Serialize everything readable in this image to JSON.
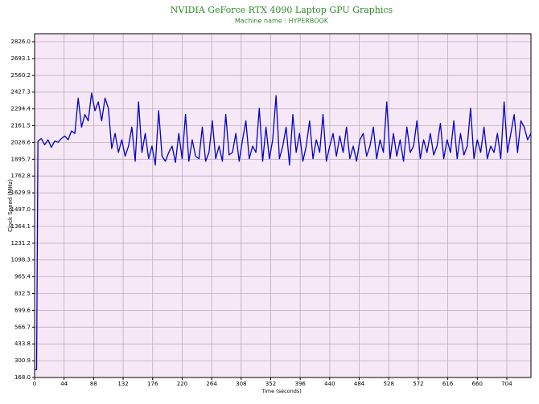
{
  "chart_data": {
    "type": "line",
    "title": "NVIDIA GeForce RTX 4090 Laptop GPU Graphics",
    "subtitle": "Machine name : HYPERBOOK",
    "x_label": "Time (seconds)",
    "y_label": "Clock Speed (MHz)",
    "xlim": [
      0,
      740
    ],
    "ylim": [
      168,
      2889.6
    ],
    "xticks": [
      0,
      44,
      88,
      132,
      176,
      220,
      264,
      308,
      352,
      396,
      440,
      484,
      528,
      572,
      616,
      660,
      704
    ],
    "yticks": [
      {
        "value": 168,
        "label": "168.0"
      },
      300.9,
      433.8,
      566.7,
      699.6,
      832.5,
      965.4,
      1098.3,
      1231.2,
      1364.1,
      {
        "value": 1497,
        "label": "1497.0"
      },
      1629.9,
      1762.8,
      1895.7,
      2028.6,
      2161.5,
      2294.4,
      2427.3,
      2560.2,
      2693.1,
      {
        "value": 2826,
        "label": "2826.0"
      }
    ],
    "grid": true,
    "x": [
      0,
      3,
      5,
      10,
      15,
      20,
      25,
      30,
      35,
      40,
      45,
      50,
      55,
      60,
      65,
      70,
      75,
      80,
      85,
      90,
      95,
      100,
      105,
      110,
      115,
      120,
      125,
      130,
      135,
      140,
      145,
      150,
      155,
      160,
      165,
      170,
      175,
      180,
      185,
      190,
      195,
      200,
      205,
      210,
      215,
      220,
      225,
      230,
      235,
      240,
      245,
      250,
      255,
      260,
      265,
      270,
      275,
      280,
      285,
      290,
      295,
      300,
      305,
      310,
      315,
      320,
      325,
      330,
      335,
      340,
      345,
      350,
      355,
      360,
      365,
      370,
      375,
      380,
      385,
      390,
      395,
      400,
      405,
      410,
      415,
      420,
      425,
      430,
      435,
      440,
      445,
      450,
      455,
      460,
      465,
      470,
      475,
      480,
      485,
      490,
      495,
      500,
      505,
      510,
      515,
      520,
      525,
      530,
      535,
      540,
      545,
      550,
      555,
      560,
      565,
      570,
      575,
      580,
      585,
      590,
      595,
      600,
      605,
      610,
      615,
      620,
      625,
      630,
      635,
      640,
      645,
      650,
      655,
      660,
      665,
      670,
      675,
      680,
      685,
      690,
      695,
      700,
      705,
      710,
      715,
      720,
      725,
      730,
      735,
      740
    ],
    "series": [
      {
        "color": "#0000c8",
        "values": [
          230,
          230,
          2040,
          2060,
          2010,
          2050,
          1990,
          2040,
          2030,
          2060,
          2080,
          2050,
          2120,
          2100,
          2380,
          2150,
          2250,
          2200,
          2420,
          2280,
          2350,
          2200,
          2380,
          2300,
          1980,
          2100,
          1950,
          2050,
          1920,
          2000,
          2150,
          1880,
          2350,
          1950,
          2100,
          1900,
          2000,
          1850,
          2280,
          1920,
          1880,
          1950,
          2000,
          1870,
          2100,
          1900,
          2250,
          1880,
          2050,
          1920,
          1900,
          2150,
          1880,
          1950,
          2200,
          1900,
          2000,
          1880,
          2250,
          1930,
          1950,
          2100,
          1880,
          2050,
          2200,
          1900,
          2000,
          1950,
          2300,
          1880,
          2150,
          1900,
          2050,
          2400,
          1900,
          2000,
          2150,
          1850,
          2250,
          1950,
          2100,
          1880,
          2000,
          2200,
          1900,
          2050,
          1950,
          2250,
          1880,
          2000,
          2100,
          1920,
          2080,
          1950,
          2150,
          1900,
          2000,
          1880,
          2050,
          2100,
          1920,
          2000,
          2150,
          1900,
          2050,
          1950,
          2350,
          1900,
          2100,
          1920,
          2050,
          1880,
          2150,
          1950,
          2000,
          2200,
          1900,
          2050,
          1950,
          2100,
          1930,
          2000,
          2180,
          1900,
          2050,
          1950,
          2200,
          1900,
          2100,
          1930,
          2000,
          2300,
          1900,
          2050,
          1950,
          2150,
          1900,
          2000,
          1950,
          2100,
          1900,
          2350,
          1950,
          2100,
          2250,
          1950,
          2200,
          2150,
          2050,
          2100
        ]
      }
    ]
  }
}
